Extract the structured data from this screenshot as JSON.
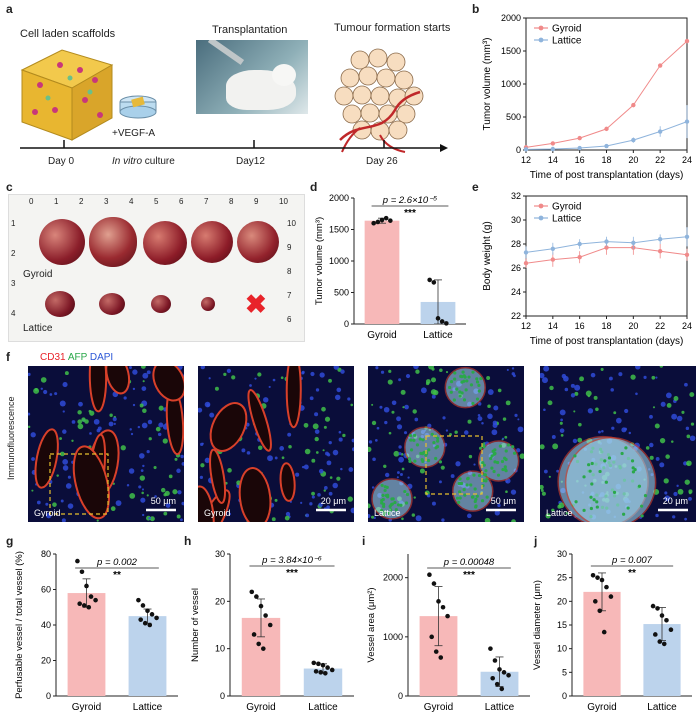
{
  "panel_a": {
    "label": "a",
    "scaffolds_title": "Cell laden scaffolds",
    "transplant_title": "Transplantation",
    "tumour_title": "Tumour formation starts",
    "vegf": "+VEGF-A",
    "day0": "Day 0",
    "invitro_italic": "In vitro",
    "invitro_rest": " culture",
    "day12": "Day12",
    "day26": "Day 26"
  },
  "panel_c": {
    "label": "c",
    "ruler_top": [
      "0",
      "1",
      "2",
      "3",
      "4",
      "5",
      "6",
      "7",
      "8",
      "9",
      "10"
    ],
    "ruler_side": [
      "1",
      "2",
      "3",
      "4"
    ],
    "ruler_right": [
      "10",
      "9",
      "8",
      "7",
      "6"
    ],
    "gyroid": "Gyroid",
    "lattice": "Lattice"
  },
  "panel_f": {
    "label": "f",
    "stain_cd31": "CD31",
    "stain_afp": "AFP",
    "stain_dapi": "DAPI",
    "side": "Immunofluorescence",
    "images": [
      {
        "group": "Gyroid",
        "scale": "50 μm"
      },
      {
        "group": "Gyroid",
        "scale": "20 μm"
      },
      {
        "group": "Lattice",
        "scale": "50 μm"
      },
      {
        "group": "Lattice",
        "scale": "20 μm"
      }
    ]
  },
  "chart_data": [
    {
      "id": "b",
      "type": "line",
      "xlabel": "Time of post transplantation (days)",
      "ylabel": "Tumor volume (mm³)",
      "x": [
        12,
        14,
        16,
        18,
        20,
        22,
        24
      ],
      "xlim": [
        12,
        24
      ],
      "ylim": [
        0,
        2000
      ],
      "yticks": [
        0,
        500,
        1000,
        1500,
        2000
      ],
      "legend": "top-left",
      "series": [
        {
          "name": "Gyroid",
          "color": "#f08a8a",
          "values": [
            40,
            100,
            180,
            320,
            680,
            1280,
            1650
          ],
          "err": [
            5,
            10,
            15,
            20,
            30,
            25,
            30
          ]
        },
        {
          "name": "Lattice",
          "color": "#8fb4dc",
          "values": [
            10,
            15,
            30,
            60,
            150,
            280,
            430
          ],
          "err": [
            3,
            5,
            8,
            15,
            40,
            80,
            250
          ]
        }
      ]
    },
    {
      "id": "d",
      "type": "bar",
      "categories": [
        "Gyroid",
        "Lattice"
      ],
      "values": [
        1640,
        350
      ],
      "err": [
        40,
        350
      ],
      "points": [
        [
          1600,
          1620,
          1650,
          1680,
          1640
        ],
        [
          700,
          660,
          90,
          40,
          10
        ]
      ],
      "colors": [
        "#f7b8b8",
        "#bcd3ec"
      ],
      "ylabel": "Tumor volume (mm³)",
      "ylim": [
        0,
        2000
      ],
      "yticks": [
        0,
        500,
        1000,
        1500,
        2000
      ],
      "pvalue": "p = 2.6×10⁻⁵",
      "stars": "***"
    },
    {
      "id": "e",
      "type": "line",
      "xlabel": "Time of post transplantation (days)",
      "ylabel": "Body weight (g)",
      "x": [
        12,
        14,
        16,
        18,
        20,
        22,
        24
      ],
      "xlim": [
        12,
        24
      ],
      "ylim": [
        22,
        32
      ],
      "yticks": [
        22,
        24,
        26,
        28,
        30,
        32
      ],
      "legend": "top-left",
      "series": [
        {
          "name": "Gyroid",
          "color": "#f08a8a",
          "values": [
            26.4,
            26.7,
            26.9,
            27.7,
            27.7,
            27.4,
            27.1
          ],
          "err": [
            0.4,
            0.6,
            0.5,
            0.6,
            0.6,
            0.6,
            0.5
          ]
        },
        {
          "name": "Lattice",
          "color": "#8fb4dc",
          "values": [
            27.3,
            27.6,
            28.0,
            28.2,
            28.1,
            28.4,
            28.6
          ],
          "err": [
            0.5,
            0.5,
            0.4,
            0.4,
            0.5,
            0.4,
            0.8
          ]
        }
      ]
    },
    {
      "id": "g",
      "type": "bar",
      "categories": [
        "Gyroid",
        "Lattice"
      ],
      "values": [
        58,
        45
      ],
      "err": [
        8,
        4
      ],
      "points": [
        [
          76,
          70,
          62,
          56,
          54,
          52,
          51,
          50
        ],
        [
          54,
          51,
          48,
          46,
          44,
          43,
          41,
          40
        ]
      ],
      "colors": [
        "#f7b8b8",
        "#bcd3ec"
      ],
      "ylabel": "Perfusable vessel / total vessel (%)",
      "ylim": [
        0,
        80
      ],
      "yticks": [
        0,
        20,
        40,
        60,
        80
      ],
      "pvalue": "p = 0.002",
      "stars": "**"
    },
    {
      "id": "h",
      "type": "bar",
      "categories": [
        "Gyroid",
        "Lattice"
      ],
      "values": [
        16.5,
        5.8
      ],
      "err": [
        4,
        1
      ],
      "points": [
        [
          22,
          21,
          19,
          17,
          15,
          13,
          11,
          10
        ],
        [
          7,
          6.8,
          6.5,
          6,
          5.5,
          5.2,
          5,
          4.8
        ]
      ],
      "colors": [
        "#f7b8b8",
        "#bcd3ec"
      ],
      "ylabel": "Number of vessel",
      "ylim": [
        0,
        30
      ],
      "yticks": [
        0,
        10,
        20,
        30
      ],
      "pvalue": "p = 3.84×10⁻⁶",
      "stars": "***"
    },
    {
      "id": "i",
      "type": "bar",
      "categories": [
        "Gyroid",
        "Lattice"
      ],
      "values": [
        1350,
        410
      ],
      "err": [
        500,
        250
      ],
      "points": [
        [
          2050,
          1900,
          1600,
          1500,
          1350,
          1000,
          750,
          650
        ],
        [
          800,
          600,
          450,
          400,
          350,
          300,
          200,
          120
        ]
      ],
      "colors": [
        "#f7b8b8",
        "#bcd3ec"
      ],
      "ylabel": "Vessel area (μm²)",
      "ylim": [
        0,
        2400
      ],
      "yticks": [
        0,
        1000,
        2000
      ],
      "pvalue": "p = 0.00048",
      "stars": "***"
    },
    {
      "id": "j",
      "type": "bar",
      "categories": [
        "Gyroid",
        "Lattice"
      ],
      "values": [
        22,
        15.2
      ],
      "err": [
        4,
        3.5
      ],
      "points": [
        [
          25.5,
          25,
          24.5,
          23,
          21,
          20,
          18,
          13.5
        ],
        [
          19,
          18.5,
          17,
          16,
          14,
          13,
          11.5,
          11
        ]
      ],
      "colors": [
        "#f7b8b8",
        "#bcd3ec"
      ],
      "ylabel": "Vessel diameter (μm)",
      "ylim": [
        0,
        30
      ],
      "yticks": [
        0,
        5,
        10,
        15,
        20,
        25,
        30
      ],
      "pvalue": "p = 0.007",
      "stars": "**"
    }
  ]
}
